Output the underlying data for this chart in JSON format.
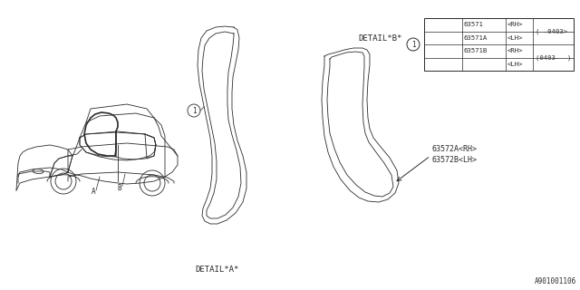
{
  "bg_color": "#ffffff",
  "line_color": "#2a2a2a",
  "diagram_id": "A901001106",
  "car_label_A": "A",
  "car_label_B": "B",
  "detail_a_label": "DETAIL*A*",
  "detail_b_label": "DETAIL*B*",
  "part_label_1": "63572A<RH>",
  "part_label_2": "63572B<LH>",
  "table_rows": [
    [
      "63571",
      "<RH>",
      "-0403>"
    ],
    [
      "63571A",
      "<LH>",
      ""
    ],
    [
      "63571B",
      "<RH>",
      "(0403-  )"
    ],
    [
      "",
      "<LH>",
      ""
    ]
  ]
}
